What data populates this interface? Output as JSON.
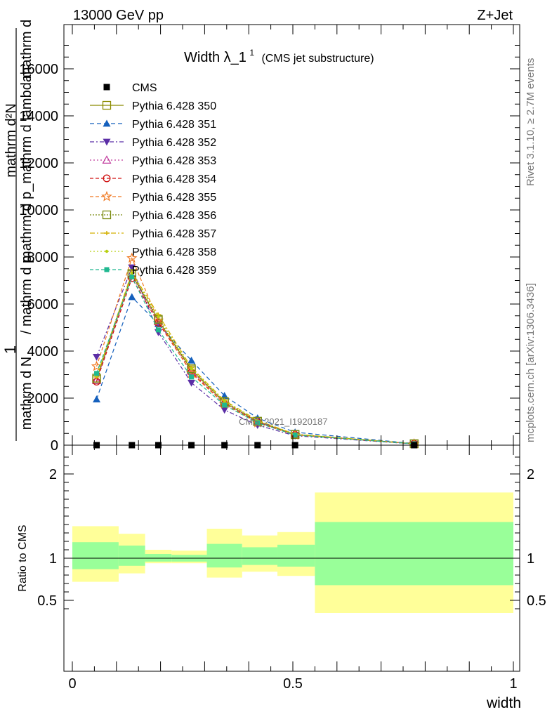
{
  "header": {
    "left": "13000 GeV pp",
    "right": "Z+Jet",
    "side_top": "Rivet 3.1.10, ≥ 2.7M events",
    "side_bottom": "mcplots.cern.ch [arXiv:1306.3436]",
    "watermark": "CMS_2021_I1920187"
  },
  "title": {
    "main": "Width λ_1",
    "superscript": "1",
    "sub": "(CMS jet substructure)"
  },
  "ylabel_main": {
    "prefix": "1",
    "top": "mathrm d²N",
    "bottom_a": "mathrm d N",
    "bottom_b": "/ mathrm d p",
    "bottom_c": "mathrm d p_mathrm d lambda",
    "extra": "mathrm d"
  },
  "ratio_ylabel": "Ratio to CMS",
  "xlabel": "width",
  "chart_data": {
    "type": "line",
    "x": [
      0.055,
      0.135,
      0.195,
      0.27,
      0.345,
      0.42,
      0.505,
      0.775
    ],
    "xlim": [
      0,
      1
    ],
    "ylim": [
      0,
      18000
    ],
    "yticks": [
      0,
      2000,
      4000,
      6000,
      8000,
      10000,
      12000,
      14000,
      16000
    ],
    "ytick_labels": [
      "0",
      "2000",
      "4000",
      "6000",
      "8000",
      "10000",
      "12000",
      "14000",
      "16000"
    ],
    "xticks": [
      0,
      0.5,
      1
    ],
    "xtick_labels": [
      "0",
      "0.5",
      "1"
    ],
    "data_series": {
      "name": "CMS",
      "values": [
        0,
        0,
        0,
        0,
        0,
        0,
        0,
        0
      ]
    },
    "series": [
      {
        "name": "Pythia 6.428 350",
        "color": "#8b8b00",
        "marker": "square-open",
        "dash": "",
        "values": [
          2800,
          7250,
          5300,
          3200,
          1800,
          1000,
          450,
          60
        ]
      },
      {
        "name": "Pythia 6.428 351",
        "color": "#1560bd",
        "marker": "triangle-up",
        "dash": "6,4",
        "values": [
          1950,
          6300,
          5150,
          3600,
          2100,
          1150,
          550,
          70
        ]
      },
      {
        "name": "Pythia 6.428 352",
        "color": "#5b2ea6",
        "marker": "triangle-down",
        "dash": "6,3,2,3",
        "values": [
          3750,
          7550,
          4800,
          2650,
          1500,
          850,
          400,
          50
        ]
      },
      {
        "name": "Pythia 6.428 353",
        "color": "#c0389c",
        "marker": "triangle-up-open",
        "dash": "2,3",
        "values": [
          2750,
          7200,
          5250,
          3150,
          1800,
          1000,
          450,
          60
        ]
      },
      {
        "name": "Pythia 6.428 354",
        "color": "#d01010",
        "marker": "circle-open",
        "dash": "5,3",
        "values": [
          2700,
          7100,
          5200,
          3100,
          1750,
          980,
          440,
          60
        ]
      },
      {
        "name": "Pythia 6.428 355",
        "color": "#f07820",
        "marker": "star-open",
        "dash": "5,3",
        "values": [
          3350,
          7950,
          5300,
          3050,
          1750,
          950,
          430,
          55
        ]
      },
      {
        "name": "Pythia 6.428 356",
        "color": "#7a8a10",
        "marker": "square-open",
        "dash": "2,2",
        "values": [
          2850,
          7300,
          5350,
          3250,
          1850,
          1020,
          460,
          60
        ]
      },
      {
        "name": "Pythia 6.428 357",
        "color": "#d4b000",
        "marker": "tick",
        "dash": "7,3,2,3",
        "values": [
          2900,
          7350,
          5550,
          3300,
          1900,
          1050,
          470,
          62
        ]
      },
      {
        "name": "Pythia 6.428 358",
        "color": "#b8d010",
        "marker": "dot",
        "dash": "2,3",
        "values": [
          2950,
          7300,
          5450,
          3250,
          1870,
          1030,
          465,
          61
        ]
      },
      {
        "name": "Pythia 6.428 359",
        "color": "#20b890",
        "marker": "square",
        "dash": "5,3",
        "values": [
          3050,
          7150,
          4900,
          2900,
          1700,
          950,
          430,
          58
        ]
      }
    ],
    "ratio": {
      "ylim": [
        0.35,
        2.3
      ],
      "yticks": [
        0.5,
        1,
        2
      ],
      "ytick_labels": [
        "0.5",
        "1",
        "2"
      ],
      "bins": [
        {
          "x0": 0.0,
          "x1": 0.105,
          "inner": [
            0.87,
            1.19
          ],
          "outer": [
            0.72,
            1.38
          ]
        },
        {
          "x0": 0.105,
          "x1": 0.165,
          "inner": [
            0.91,
            1.15
          ],
          "outer": [
            0.82,
            1.29
          ]
        },
        {
          "x0": 0.165,
          "x1": 0.225,
          "inner": [
            0.96,
            1.05
          ],
          "outer": [
            0.94,
            1.1
          ]
        },
        {
          "x0": 0.225,
          "x1": 0.305,
          "inner": [
            0.96,
            1.04
          ],
          "outer": [
            0.94,
            1.09
          ]
        },
        {
          "x0": 0.305,
          "x1": 0.385,
          "inner": [
            0.89,
            1.17
          ],
          "outer": [
            0.77,
            1.35
          ]
        },
        {
          "x0": 0.385,
          "x1": 0.465,
          "inner": [
            0.92,
            1.13
          ],
          "outer": [
            0.84,
            1.27
          ]
        },
        {
          "x0": 0.465,
          "x1": 0.55,
          "inner": [
            0.9,
            1.16
          ],
          "outer": [
            0.79,
            1.31
          ]
        },
        {
          "x0": 0.55,
          "x1": 1.0,
          "inner": [
            0.68,
            1.43
          ],
          "outer": [
            0.35,
            1.78
          ]
        }
      ]
    }
  }
}
